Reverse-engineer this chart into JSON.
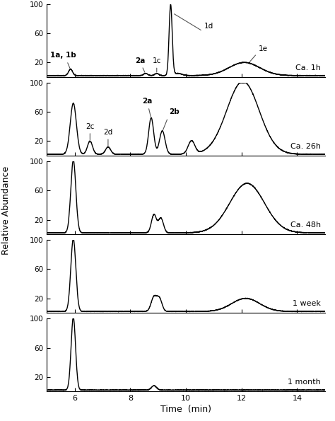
{
  "panels": [
    {
      "label": "Ca. 1h"
    },
    {
      "label": "Ca. 26h"
    },
    {
      "label": "Ca. 48h"
    },
    {
      "label": "1 week"
    },
    {
      "label": "1 month"
    }
  ],
  "xlabel": "Time  (min)",
  "ylabel": "Relative Abundance",
  "xlim": [
    5,
    15
  ],
  "ylim": [
    0,
    100
  ],
  "yticks": [
    20,
    60,
    100
  ],
  "xticks": [
    6,
    8,
    10,
    12,
    14
  ],
  "bg_color": "#ffffff",
  "line_color": "#000000",
  "line_width": 1.0
}
